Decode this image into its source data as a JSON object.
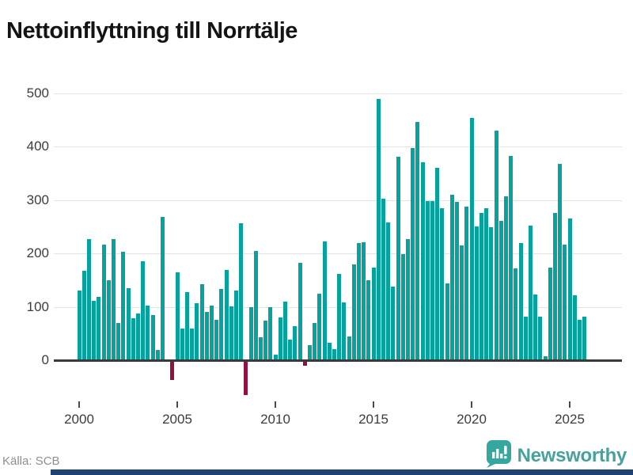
{
  "title": "Nettoinflyttning till Norrtälje",
  "source": "Källa: SCB",
  "branding": {
    "name": "Newsworthy",
    "icon": "newsworthy-bubble-chart-icon"
  },
  "colors": {
    "bar_positive": "#06a29e",
    "bar_negative": "#8f1242",
    "grid": "#e3e3e3",
    "zero_axis": "#3a3a3a",
    "bottom_strip_navy": "#1e4272",
    "brand_teal": "#47a19d"
  },
  "chart_data": {
    "type": "bar",
    "title": "Nettoinflyttning till Norrtälje",
    "xlabel": "",
    "ylabel": "",
    "x_tick_labels": [
      "2000",
      "2005",
      "2010",
      "2015",
      "2020",
      "2025"
    ],
    "y_tick_labels": [
      0,
      100,
      200,
      300,
      400,
      500
    ],
    "ylim": [
      -75,
      510
    ],
    "grid": "horizontal",
    "legend": "none",
    "frequency": "quarterly",
    "categories": [
      "2000Q1",
      "2000Q2",
      "2000Q3",
      "2000Q4",
      "2001Q1",
      "2001Q2",
      "2001Q3",
      "2001Q4",
      "2002Q1",
      "2002Q2",
      "2002Q3",
      "2002Q4",
      "2003Q1",
      "2003Q2",
      "2003Q3",
      "2003Q4",
      "2004Q1",
      "2004Q2",
      "2004Q3",
      "2004Q4",
      "2005Q1",
      "2005Q2",
      "2005Q3",
      "2005Q4",
      "2006Q1",
      "2006Q2",
      "2006Q3",
      "2006Q4",
      "2007Q1",
      "2007Q2",
      "2007Q3",
      "2007Q4",
      "2008Q1",
      "2008Q2",
      "2008Q3",
      "2008Q4",
      "2009Q1",
      "2009Q2",
      "2009Q3",
      "2009Q4",
      "2010Q1",
      "2010Q2",
      "2010Q3",
      "2010Q4",
      "2011Q1",
      "2011Q2",
      "2011Q3",
      "2011Q4",
      "2012Q1",
      "2012Q2",
      "2012Q3",
      "2012Q4",
      "2013Q1",
      "2013Q2",
      "2013Q3",
      "2013Q4",
      "2014Q1",
      "2014Q2",
      "2014Q3",
      "2014Q4",
      "2015Q1",
      "2015Q2",
      "2015Q3",
      "2015Q4",
      "2016Q1",
      "2016Q2",
      "2016Q3",
      "2016Q4",
      "2017Q1",
      "2017Q2",
      "2017Q3",
      "2017Q4",
      "2018Q1",
      "2018Q2",
      "2018Q3",
      "2018Q4",
      "2019Q1",
      "2019Q2",
      "2019Q3",
      "2019Q4",
      "2020Q1",
      "2020Q2",
      "2020Q3",
      "2020Q4",
      "2021Q1",
      "2021Q2",
      "2021Q3",
      "2021Q4",
      "2022Q1",
      "2022Q2",
      "2022Q3",
      "2022Q4",
      "2023Q1",
      "2023Q2",
      "2023Q3",
      "2023Q4",
      "2024Q1",
      "2024Q2",
      "2024Q3",
      "2024Q4",
      "2025Q1",
      "2025Q2",
      "2025Q3",
      "2025Q4"
    ],
    "values": [
      131,
      168,
      227,
      111,
      118,
      217,
      150,
      226,
      69,
      203,
      135,
      79,
      88,
      185,
      102,
      84,
      19,
      268,
      0,
      -37,
      164,
      60,
      127,
      60,
      106,
      142,
      91,
      102,
      75,
      133,
      169,
      101,
      131,
      257,
      -65,
      100,
      205,
      43,
      74,
      99,
      10,
      80,
      110,
      38,
      64,
      182,
      -10,
      28,
      70,
      125,
      222,
      32,
      21,
      162,
      108,
      45,
      179,
      219,
      221,
      150,
      173,
      489,
      302,
      258,
      138,
      381,
      198,
      226,
      397,
      446,
      371,
      298,
      298,
      360,
      284,
      143,
      309,
      296,
      215,
      287,
      453,
      250,
      275,
      284,
      249,
      430,
      261,
      306,
      382,
      172,
      220,
      82,
      252,
      123,
      82,
      8,
      173,
      275,
      368,
      216,
      265,
      122,
      75,
      82
    ]
  }
}
